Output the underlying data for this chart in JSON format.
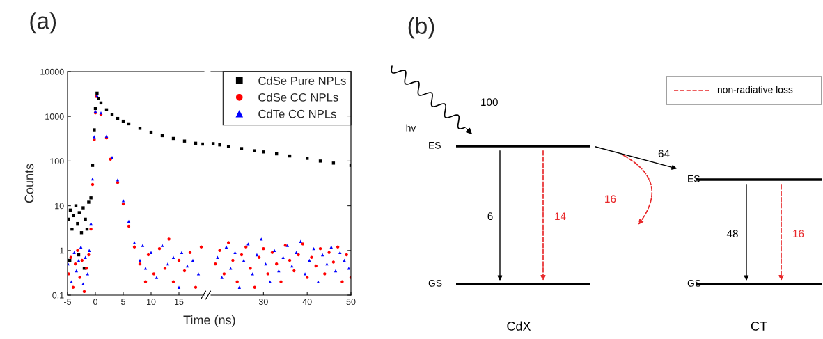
{
  "chart_data": [
    {
      "type": "scatter",
      "title": "(a)",
      "xlabel": "Time (ns)",
      "ylabel": "Counts",
      "log": "y",
      "xlim": [
        -5,
        19.5
      ],
      "xticks": [
        -5,
        0,
        5,
        10,
        15
      ],
      "ylim": [
        0.1,
        10000
      ],
      "yticks": [
        0.1,
        1,
        10,
        100,
        1000,
        10000
      ],
      "series": [
        {
          "color": "#000000",
          "marker": "square",
          "x": [
            -4.8,
            -4.5,
            -4.2,
            -3.9,
            -3.5,
            -3.2,
            -2.9,
            -2.5,
            -2.2,
            -1.8,
            -1.5,
            -1.2,
            -4.6,
            -3.0,
            -2.0,
            -0.8,
            -0.5,
            -0.2,
            0,
            0.3,
            0.6,
            1,
            2,
            3,
            4,
            5,
            6,
            8,
            10,
            12,
            14,
            16,
            18,
            19.3
          ],
          "values": [
            5,
            8,
            3,
            6,
            10,
            4,
            7,
            2.5,
            9,
            5,
            3,
            12,
            0.6,
            0.8,
            0.4,
            15,
            80,
            500,
            1500,
            3300,
            2500,
            2000,
            1400,
            1100,
            900,
            780,
            680,
            540,
            440,
            370,
            320,
            280,
            250,
            240
          ]
        },
        {
          "color": "#ff0000",
          "marker": "circle",
          "x": [
            -4.8,
            -4.4,
            -4,
            -3.6,
            -3.2,
            -2.8,
            -2.4,
            -2,
            -1.6,
            -1.2,
            -0.8,
            -0.5,
            -0.2,
            0,
            0.15,
            1,
            2,
            2.7,
            4,
            5,
            6,
            7,
            8,
            9,
            9.5,
            10.5,
            11.5,
            12.5,
            13.2,
            14,
            15,
            16,
            17,
            18,
            19
          ],
          "values": [
            0.3,
            0.7,
            0.15,
            0.5,
            1,
            0.25,
            0.6,
            0.12,
            0.4,
            0.8,
            3,
            30,
            300,
            1200,
            2800,
            1100,
            330,
            110,
            33,
            11,
            3.5,
            1.2,
            0.5,
            0.2,
            0.8,
            0.3,
            1.1,
            0.4,
            1.8,
            0.2,
            0.6,
            0.35,
            0.9,
            0.15,
            1.2
          ]
        },
        {
          "color": "#0000ff",
          "marker": "triangle",
          "x": [
            -4.9,
            -4.3,
            -3.8,
            -3.4,
            -3.0,
            -2.6,
            -2.2,
            -1.8,
            -1.4,
            -1.1,
            -0.8,
            -0.5,
            -0.2,
            0,
            0.3,
            1,
            2,
            3,
            4,
            5,
            6,
            7,
            8,
            8.5,
            9,
            10,
            11,
            12,
            13,
            14,
            15,
            15.5,
            16.5,
            17.5,
            18.5
          ],
          "values": [
            0.5,
            0.2,
            0.9,
            0.35,
            0.6,
            1.2,
            0.18,
            0.7,
            0.3,
            1.0,
            4,
            40,
            350,
            1300,
            2900,
            1200,
            360,
            120,
            38,
            13,
            4.5,
            1.5,
            0.6,
            1.3,
            0.4,
            0.9,
            0.25,
            1.3,
            0.5,
            0.7,
            0.15,
            0.9,
            0.45,
            0.6,
            0.3
          ]
        }
      ]
    },
    {
      "type": "scatter",
      "log": "y",
      "xlim": [
        18,
        50
      ],
      "xticks": [
        30,
        40,
        50
      ],
      "ylim": [
        0.1,
        10000
      ],
      "yticks": [
        0.1,
        1,
        10,
        100,
        1000,
        10000
      ],
      "tick_labels": "x",
      "legend": "top right",
      "series": [
        {
          "name": "CdSe Pure NPLs",
          "color": "#000000",
          "marker": "square",
          "x": [
            18.5,
            20,
            22,
            25,
            28,
            30,
            33,
            36,
            40,
            43,
            46,
            50
          ],
          "values": [
            245,
            230,
            210,
            190,
            170,
            160,
            145,
            130,
            115,
            100,
            90,
            80
          ]
        },
        {
          "name": "CdSe CC NPLs",
          "color": "#ff0000",
          "marker": "circle",
          "x": [
            19,
            20,
            21,
            22,
            23,
            24,
            25,
            26,
            27,
            28,
            29,
            30,
            31,
            32,
            33,
            34,
            35,
            36,
            37,
            38,
            39,
            40,
            41,
            42,
            43,
            44,
            45,
            46,
            47,
            48,
            49,
            50
          ],
          "values": [
            0.5,
            1.0,
            0.3,
            1.5,
            0.6,
            0.2,
            0.8,
            1.2,
            0.4,
            0.15,
            0.7,
            1.1,
            0.3,
            0.9,
            0.5,
            0.2,
            1.3,
            0.6,
            0.35,
            0.8,
            1.4,
            0.25,
            0.7,
            0.45,
            1.1,
            0.3,
            0.9,
            0.55,
            1.2,
            0.2,
            0.8,
            0.25
          ]
        },
        {
          "name": "CdTe CC NPLs",
          "color": "#0000ff",
          "marker": "triangle",
          "x": [
            19.5,
            20.5,
            21.5,
            22.5,
            23.5,
            24.5,
            25.5,
            26.5,
            27.5,
            28.5,
            29.5,
            30.5,
            31.5,
            32.5,
            33.5,
            34.5,
            35.5,
            36.5,
            37.5,
            38.5,
            39.5,
            40.5,
            41.5,
            42.5,
            43.5,
            44.5,
            45.5,
            46.5,
            47.5,
            48.5,
            49.5
          ],
          "values": [
            0.7,
            0.25,
            1.2,
            0.4,
            0.9,
            0.15,
            0.6,
            1.4,
            0.3,
            0.8,
            1.8,
            0.5,
            0.2,
            1.0,
            0.35,
            0.7,
            1.3,
            0.45,
            0.9,
            1.6,
            0.3,
            0.6,
            1.1,
            0.2,
            0.8,
            0.5,
            1.2,
            0.35,
            0.9,
            0.6,
            0.4
          ]
        }
      ]
    },
    {
      "type": "other",
      "title": "(b)",
      "annotations": [
        "hv",
        "100",
        "ES",
        "GS",
        "6",
        "14",
        "64",
        "16",
        "ES",
        "GS",
        "48",
        "16",
        "CdX",
        "CT",
        "non-radiative loss"
      ]
    }
  ]
}
